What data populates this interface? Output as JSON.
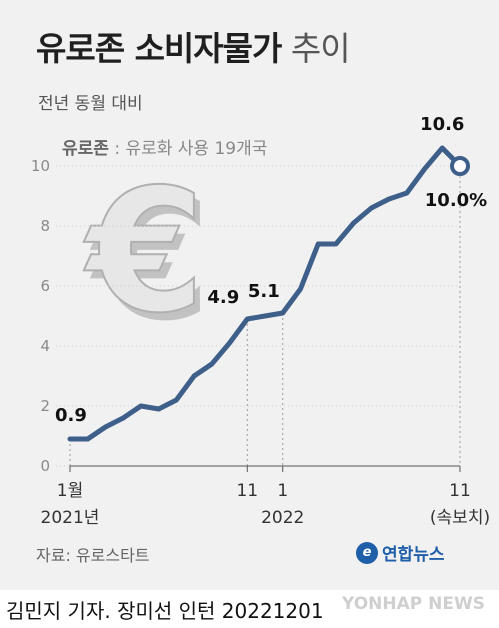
{
  "header": {
    "title_bold": "유로존 소비자물가",
    "title_light": " 추이",
    "subtitle": "전년 동월 대비"
  },
  "note": {
    "key": "유로존",
    "sep": " : ",
    "value": "유로화 사용 19개국"
  },
  "source": "자료: 유로스타트",
  "logo": {
    "text": "연합뉴스"
  },
  "footer": {
    "credit": "김민지 기자. 장미선 인턴  20221201",
    "watermark": "YONHAP NEWS"
  },
  "icon": "euro-coin-icon",
  "colors": {
    "line": "#3e5f8a",
    "background": "#f1f1f1",
    "text": "#222222"
  },
  "chart_data": {
    "type": "line",
    "ylim": [
      0,
      10
    ],
    "yticks": [
      0,
      2,
      4,
      6,
      8,
      10
    ],
    "x": [
      "2021-01",
      "2021-02",
      "2021-03",
      "2021-04",
      "2021-05",
      "2021-06",
      "2021-07",
      "2021-08",
      "2021-09",
      "2021-10",
      "2021-11",
      "2021-12",
      "2022-01",
      "2022-02",
      "2022-03",
      "2022-04",
      "2022-05",
      "2022-06",
      "2022-07",
      "2022-08",
      "2022-09",
      "2022-10",
      "2022-11"
    ],
    "values": [
      0.9,
      0.9,
      1.3,
      1.6,
      2.0,
      1.9,
      2.2,
      3.0,
      3.4,
      4.1,
      4.9,
      5.0,
      5.1,
      5.9,
      7.4,
      7.4,
      8.1,
      8.6,
      8.9,
      9.1,
      9.9,
      10.6,
      10.0
    ],
    "x_tick_labels": [
      {
        "index": 0,
        "line1": "1월",
        "line2": "2021년"
      },
      {
        "index": 10,
        "line1": "11",
        "line2": ""
      },
      {
        "index": 12,
        "line1": "1",
        "line2": "2022"
      },
      {
        "index": 22,
        "line1": "11",
        "line2": "(속보치)"
      }
    ],
    "data_labels": [
      {
        "index": 0,
        "text": "0.9"
      },
      {
        "index": 10,
        "text": "4.9"
      },
      {
        "index": 12,
        "text": "5.1"
      },
      {
        "index": 21,
        "text": "10.6"
      },
      {
        "index": 22,
        "text": "10.0%"
      }
    ]
  }
}
